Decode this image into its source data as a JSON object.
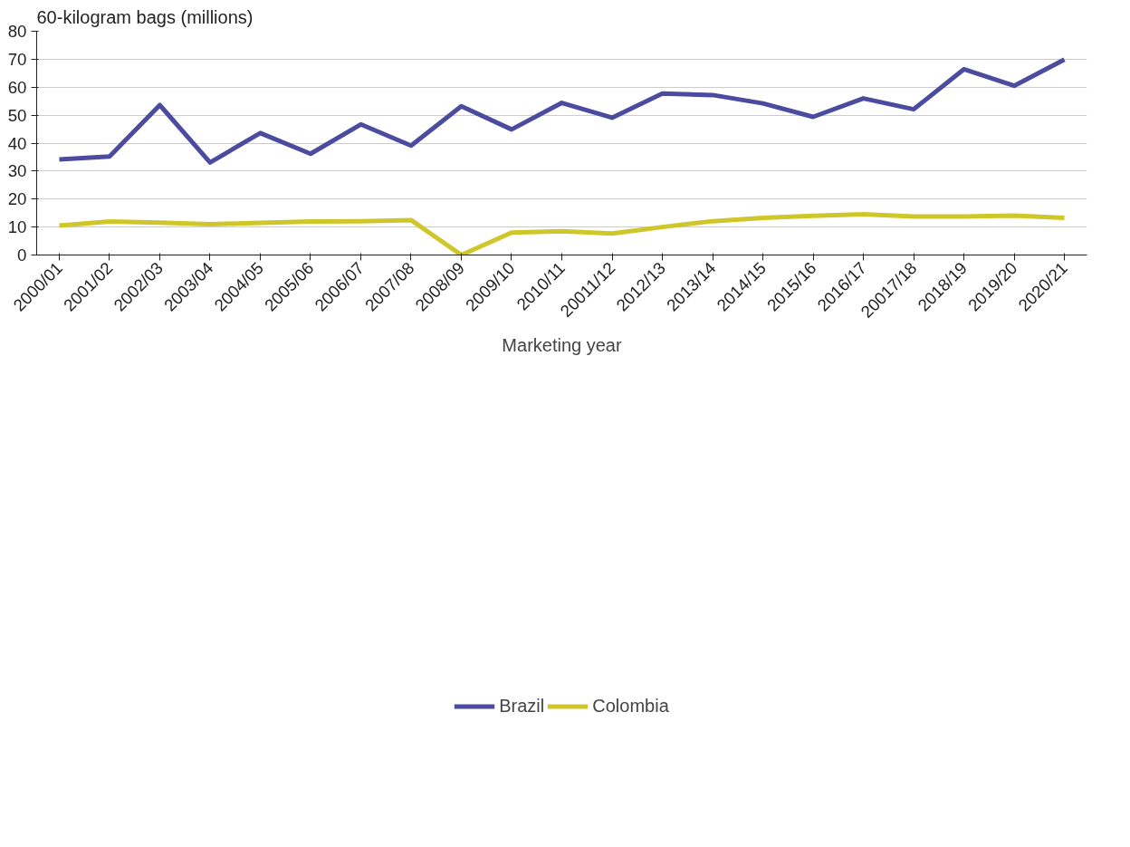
{
  "chart_data": {
    "type": "line",
    "ylabel": "60-kilogram bags (millions)",
    "xlabel": "Marketing year",
    "categories": [
      "2000/01",
      "2001/02",
      "2002/03",
      "2003/04",
      "2004/05",
      "2005/06",
      "2006/07",
      "2007/08",
      "2008/09",
      "2009/10",
      "2010/11",
      "20011/12",
      "2012/13",
      "2013/14",
      "2014/15",
      "2015/16",
      "2016/17",
      "20017/18",
      "2018/19",
      "2019/20",
      "2020/21"
    ],
    "series": [
      {
        "name": "Brazil",
        "color": "#4b4ba0",
        "values": [
          34.2,
          35.2,
          53.6,
          33.1,
          43.6,
          36.2,
          46.7,
          39.1,
          53.2,
          44.9,
          54.4,
          49.1,
          57.7,
          57.2,
          54.2,
          49.4,
          56.0,
          52.1,
          66.4,
          60.5,
          69.9
        ]
      },
      {
        "name": "Colombia",
        "color": "#cfc62a",
        "values": [
          10.5,
          12.0,
          11.6,
          11.0,
          11.5,
          12.0,
          12.1,
          12.5,
          0,
          8.0,
          8.5,
          7.7,
          10.0,
          12.1,
          13.3,
          14.0,
          14.6,
          13.8,
          13.8,
          14.1,
          13.3
        ]
      }
    ],
    "ylim": [
      0,
      80
    ],
    "yticks": [
      0,
      10,
      20,
      30,
      40,
      50,
      60,
      70,
      80
    ],
    "grid": "y",
    "legend": "bottom",
    "marker": "none",
    "line_style": "solid"
  }
}
